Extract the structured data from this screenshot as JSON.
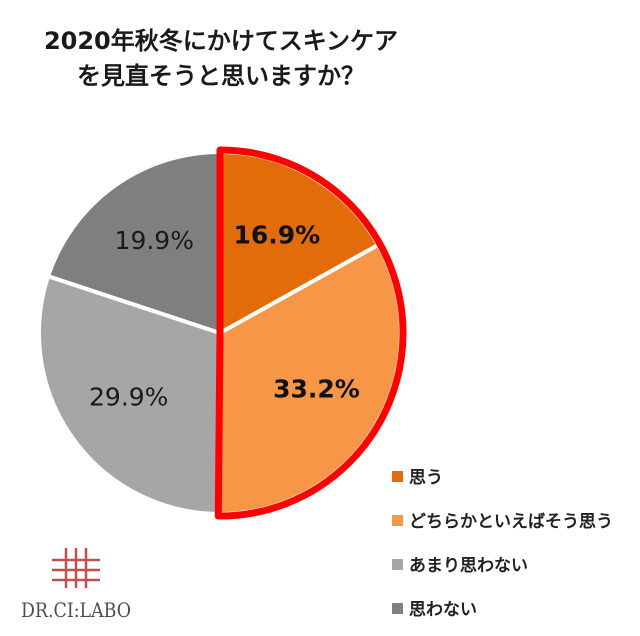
{
  "chart_data": {
    "type": "pie",
    "title": [
      "2020年秋冬にかけてスキンケア",
      "を見直そうと思いますか？"
    ],
    "start_angle_deg": 0,
    "direction": "clockwise",
    "categories": [
      "思う",
      "どちらかといえばそう思う",
      "あまり思わない",
      "思わない"
    ],
    "values": [
      16.9,
      33.2,
      29.9,
      19.9
    ],
    "value_labels": [
      "16.9%",
      "33.2%",
      "29.9%",
      "19.9%"
    ],
    "colors": [
      "#e36c0a",
      "#f79646",
      "#a6a6a6",
      "#7f7f7f"
    ],
    "label_bold": [
      true,
      true,
      false,
      false
    ],
    "highlight": {
      "categories": [
        "思う",
        "どちらかといえばそう思う"
      ],
      "outline_color": "#ff0000"
    },
    "legend": {
      "position": "bottom-right",
      "entries": [
        "思う",
        "どちらかといえばそう思う",
        "あまり思わない",
        "思わない"
      ]
    }
  },
  "logo": {
    "text": "DR.CI:LABO",
    "color": "#c0504d"
  }
}
